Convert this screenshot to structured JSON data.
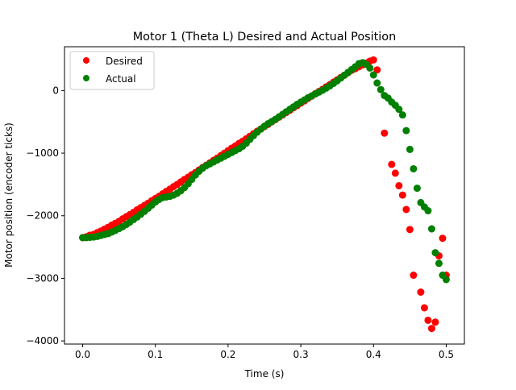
{
  "chart_data": {
    "type": "scatter",
    "title": "Motor 1 (Theta L) Desired and Actual Position",
    "xlabel": "Time (s)",
    "ylabel": "Motor position (encoder ticks)",
    "xlim": [
      -0.025,
      0.525
    ],
    "ylim": [
      -4050,
      700
    ],
    "xticks": [
      0.0,
      0.1,
      0.2,
      0.3,
      0.4,
      0.5
    ],
    "xtick_labels": [
      "0.0",
      "0.1",
      "0.2",
      "0.3",
      "0.4",
      "0.5"
    ],
    "yticks": [
      -4000,
      -3000,
      -2000,
      -1000,
      0
    ],
    "ytick_labels": [
      "−4000",
      "−3000",
      "−2000",
      "−1000",
      "0"
    ],
    "grid": false,
    "legend_position": "top-left",
    "series": [
      {
        "name": "Desired",
        "color": "#ff0000",
        "x": [
          0.0,
          0.005,
          0.01,
          0.015,
          0.02,
          0.025,
          0.03,
          0.035,
          0.04,
          0.045,
          0.05,
          0.055,
          0.06,
          0.065,
          0.07,
          0.075,
          0.08,
          0.085,
          0.09,
          0.095,
          0.1,
          0.105,
          0.11,
          0.115,
          0.12,
          0.125,
          0.13,
          0.135,
          0.14,
          0.145,
          0.15,
          0.155,
          0.16,
          0.165,
          0.17,
          0.175,
          0.18,
          0.185,
          0.19,
          0.195,
          0.2,
          0.205,
          0.21,
          0.215,
          0.22,
          0.225,
          0.23,
          0.235,
          0.24,
          0.245,
          0.25,
          0.255,
          0.26,
          0.265,
          0.27,
          0.275,
          0.28,
          0.285,
          0.29,
          0.295,
          0.3,
          0.305,
          0.31,
          0.315,
          0.32,
          0.325,
          0.33,
          0.335,
          0.34,
          0.345,
          0.35,
          0.355,
          0.36,
          0.365,
          0.37,
          0.375,
          0.38,
          0.385,
          0.39,
          0.395,
          0.4,
          0.405,
          0.415,
          0.425,
          0.43,
          0.435,
          0.44,
          0.445,
          0.45,
          0.455,
          0.465,
          0.47,
          0.475,
          0.48,
          0.485,
          0.49,
          0.495,
          0.5
        ],
        "y": [
          -2350,
          -2335,
          -2310,
          -2300,
          -2270,
          -2245,
          -2215,
          -2185,
          -2150,
          -2120,
          -2090,
          -2050,
          -2015,
          -1980,
          -1945,
          -1905,
          -1870,
          -1835,
          -1800,
          -1760,
          -1725,
          -1690,
          -1650,
          -1610,
          -1575,
          -1535,
          -1500,
          -1460,
          -1420,
          -1385,
          -1345,
          -1310,
          -1270,
          -1230,
          -1195,
          -1155,
          -1115,
          -1080,
          -1040,
          -1000,
          -960,
          -920,
          -885,
          -845,
          -810,
          -770,
          -730,
          -690,
          -650,
          -615,
          -575,
          -540,
          -500,
          -465,
          -425,
          -390,
          -350,
          -315,
          -275,
          -240,
          -200,
          -165,
          -125,
          -90,
          -50,
          -15,
          20,
          60,
          95,
          135,
          170,
          210,
          245,
          285,
          325,
          350,
          380,
          410,
          440,
          470,
          490,
          330,
          -680,
          -1180,
          -1320,
          -1520,
          -1670,
          -1900,
          -2220,
          -2950,
          -3220,
          -3470,
          -3670,
          -3800,
          -3700,
          -2640,
          -2360,
          -2950
        ]
      },
      {
        "name": "Actual",
        "color": "#008000",
        "x": [
          0.0,
          0.005,
          0.01,
          0.015,
          0.02,
          0.025,
          0.03,
          0.035,
          0.04,
          0.045,
          0.05,
          0.055,
          0.06,
          0.065,
          0.07,
          0.075,
          0.08,
          0.085,
          0.09,
          0.095,
          0.1,
          0.105,
          0.11,
          0.115,
          0.12,
          0.125,
          0.13,
          0.135,
          0.14,
          0.145,
          0.15,
          0.155,
          0.16,
          0.165,
          0.17,
          0.175,
          0.18,
          0.185,
          0.19,
          0.195,
          0.2,
          0.205,
          0.21,
          0.215,
          0.22,
          0.225,
          0.23,
          0.235,
          0.24,
          0.245,
          0.25,
          0.255,
          0.26,
          0.265,
          0.27,
          0.275,
          0.28,
          0.285,
          0.29,
          0.295,
          0.3,
          0.305,
          0.31,
          0.315,
          0.32,
          0.325,
          0.33,
          0.335,
          0.34,
          0.345,
          0.35,
          0.355,
          0.36,
          0.365,
          0.37,
          0.375,
          0.38,
          0.385,
          0.39,
          0.395,
          0.4,
          0.405,
          0.41,
          0.415,
          0.42,
          0.425,
          0.43,
          0.435,
          0.44,
          0.445,
          0.45,
          0.455,
          0.46,
          0.465,
          0.47,
          0.475,
          0.48,
          0.485,
          0.49,
          0.495,
          0.5
        ],
        "y": [
          -2350,
          -2350,
          -2345,
          -2340,
          -2330,
          -2315,
          -2300,
          -2285,
          -2260,
          -2235,
          -2205,
          -2175,
          -2140,
          -2100,
          -2060,
          -2020,
          -1975,
          -1930,
          -1880,
          -1830,
          -1780,
          -1740,
          -1710,
          -1700,
          -1690,
          -1670,
          -1640,
          -1600,
          -1550,
          -1490,
          -1420,
          -1350,
          -1290,
          -1240,
          -1200,
          -1170,
          -1140,
          -1110,
          -1080,
          -1050,
          -1020,
          -990,
          -960,
          -930,
          -890,
          -840,
          -780,
          -720,
          -665,
          -615,
          -570,
          -530,
          -495,
          -460,
          -420,
          -380,
          -340,
          -300,
          -260,
          -220,
          -185,
          -150,
          -115,
          -85,
          -55,
          -25,
          5,
          40,
          75,
          115,
          155,
          200,
          245,
          290,
          335,
          380,
          430,
          445,
          420,
          360,
          250,
          120,
          15,
          -80,
          -120,
          -185,
          -235,
          -300,
          -390,
          -640,
          -940,
          -1250,
          -1560,
          -1790,
          -1860,
          -1920,
          -2210,
          -2590,
          -2760,
          -2950,
          -3020
        ]
      }
    ]
  }
}
